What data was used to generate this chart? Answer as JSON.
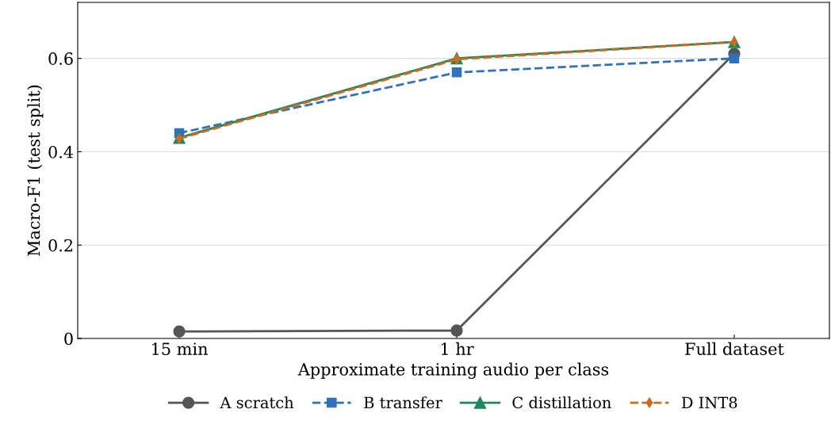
{
  "chart_data": {
    "type": "line",
    "xlabel": "Approximate training audio per class",
    "ylabel": "Macro-F1 (test split)",
    "categories": [
      "15 min",
      "1 hr",
      "Full dataset"
    ],
    "series": [
      {
        "name": "A scratch",
        "color": "#555555",
        "values": [
          0.015,
          0.017,
          0.61
        ],
        "marker": "circle",
        "line_style": "solid"
      },
      {
        "name": "B transfer",
        "color": "#3070c0",
        "values": [
          0.44,
          0.57,
          0.6
        ],
        "marker": "square",
        "line_style": "dashed"
      },
      {
        "name": "C distillation",
        "color": "#1a8a5a",
        "values": [
          0.43,
          0.6,
          0.635
        ],
        "marker": "triangle",
        "line_style": "solid"
      },
      {
        "name": "D INT8",
        "color": "#d2691e",
        "values": [
          0.428,
          0.598,
          0.635
        ],
        "marker": "diamond",
        "line_style": "dashed"
      }
    ],
    "ylim": [
      0,
      0.72
    ],
    "yticks": [
      {
        "value": 0,
        "label": "0"
      },
      0.2,
      0.4,
      0.6
    ],
    "grid": "y",
    "legend": "bottom"
  }
}
